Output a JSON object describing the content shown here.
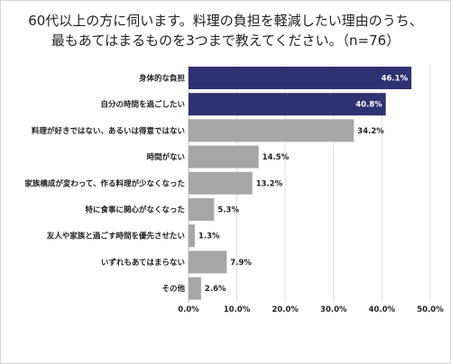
{
  "chart_data": {
    "type": "bar",
    "orientation": "horizontal",
    "title_lines": [
      "60代以上の方に伺います。料理の負担を軽減したい理由のうち、",
      "最もあてはまるものを3つまで教えてください。（n=76）"
    ],
    "categories": [
      "身体的な負担",
      "自分の時間を過ごしたい",
      "料理が好きではない、あるいは得意ではない",
      "時間がない",
      "家族構成が変わって、作る料理が少なくなった",
      "特に食事に関心がなくなった",
      "友人や家族と過ごす時間を優先させたい",
      "いずれもあてはまらない",
      "その他"
    ],
    "values": [
      46.1,
      40.8,
      34.2,
      14.5,
      13.2,
      5.3,
      1.3,
      7.9,
      2.6
    ],
    "value_labels": [
      "46.1%",
      "40.8%",
      "34.2%",
      "14.5%",
      "13.2%",
      "5.3%",
      "1.3%",
      "7.9%",
      "2.6%"
    ],
    "highlight_count": 2,
    "xlim": [
      0,
      50
    ],
    "xticks": [
      "0.0%",
      "10.0%",
      "20.0%",
      "30.0%",
      "40.0%",
      "50.0%"
    ],
    "grid": true,
    "colors": {
      "highlight": "#2e3272",
      "normal": "#a6a6a6",
      "grid": "#dcdcdc"
    }
  }
}
